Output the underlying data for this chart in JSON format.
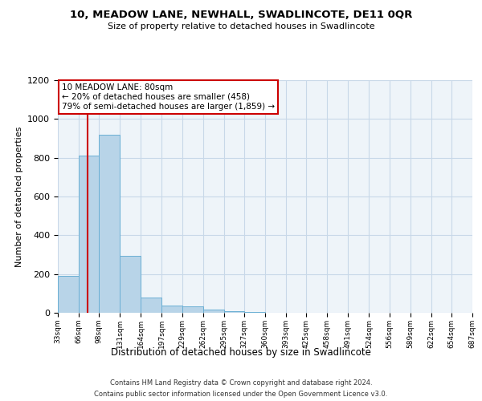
{
  "title": "10, MEADOW LANE, NEWHALL, SWADLINCOTE, DE11 0QR",
  "subtitle": "Size of property relative to detached houses in Swadlincote",
  "xlabel": "Distribution of detached houses by size in Swadlincote",
  "ylabel": "Number of detached properties",
  "footer_line1": "Contains HM Land Registry data © Crown copyright and database right 2024.",
  "footer_line2": "Contains public sector information licensed under the Open Government Licence v3.0.",
  "bar_values": [
    190,
    810,
    920,
    295,
    80,
    38,
    32,
    15,
    10,
    5,
    0,
    0,
    0,
    0,
    0,
    0,
    0,
    0,
    0,
    0
  ],
  "bin_edges": [
    33,
    66,
    98,
    131,
    164,
    197,
    229,
    262,
    295,
    327,
    360,
    393,
    425,
    458,
    491,
    524,
    556,
    589,
    622,
    654,
    687
  ],
  "x_tick_labels": [
    "33sqm",
    "66sqm",
    "98sqm",
    "131sqm",
    "164sqm",
    "197sqm",
    "229sqm",
    "262sqm",
    "295sqm",
    "327sqm",
    "360sqm",
    "393sqm",
    "425sqm",
    "458sqm",
    "491sqm",
    "524sqm",
    "556sqm",
    "589sqm",
    "622sqm",
    "654sqm",
    "687sqm"
  ],
  "ylim": [
    0,
    1200
  ],
  "yticks": [
    0,
    200,
    400,
    600,
    800,
    1000,
    1200
  ],
  "bar_color": "#b8d4e8",
  "bar_edge_color": "#6aafd4",
  "grid_color": "#c8d8e8",
  "bg_color": "#eef4f9",
  "property_line_x": 80,
  "annotation_text_line1": "10 MEADOW LANE: 80sqm",
  "annotation_text_line2": "← 20% of detached houses are smaller (458)",
  "annotation_text_line3": "79% of semi-detached houses are larger (1,859) →",
  "annotation_box_color": "#ffffff",
  "annotation_border_color": "#cc0000",
  "red_line_color": "#cc0000",
  "title_fontsize": 9.5,
  "subtitle_fontsize": 8.0,
  "ylabel_fontsize": 8.0,
  "xlabel_fontsize": 8.5,
  "ytick_fontsize": 8.0,
  "xtick_fontsize": 6.5,
  "footer_fontsize": 6.0,
  "ann_fontsize": 7.5
}
